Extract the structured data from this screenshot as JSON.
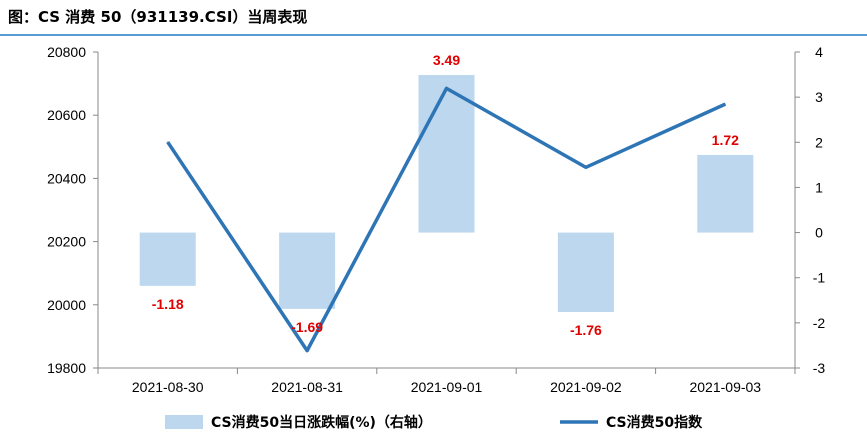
{
  "title": "图：CS 消费 50（931139.CSI）当周表现",
  "chart_data": {
    "type": "bar+line",
    "categories": [
      "2021-08-30",
      "2021-08-31",
      "2021-09-01",
      "2021-09-02",
      "2021-09-03"
    ],
    "series": [
      {
        "name": "CS消费50当日涨跌幅(%)（右轴）",
        "type": "bar",
        "axis": "right",
        "color": "#bdd7ee",
        "values": [
          -1.18,
          -1.69,
          3.49,
          -1.76,
          1.72
        ],
        "data_labels": [
          "-1.18",
          "-1.69",
          "3.49",
          "-1.76",
          "1.72"
        ]
      },
      {
        "name": "CS消费50指数",
        "type": "line",
        "axis": "left",
        "color": "#2e75b6",
        "values": [
          20515,
          19855,
          20685,
          20435,
          20635
        ]
      }
    ],
    "y_left": {
      "min": 19800,
      "max": 20800,
      "ticks": [
        "19800",
        "20000",
        "20200",
        "20400",
        "20600",
        "20800"
      ]
    },
    "y_right": {
      "min": -3,
      "max": 4,
      "ticks": [
        "-3",
        "-2",
        "-1",
        "0",
        "1",
        "2",
        "3",
        "4"
      ]
    },
    "grid": false,
    "legend_position": "bottom",
    "data_label_color": "#e00000"
  }
}
